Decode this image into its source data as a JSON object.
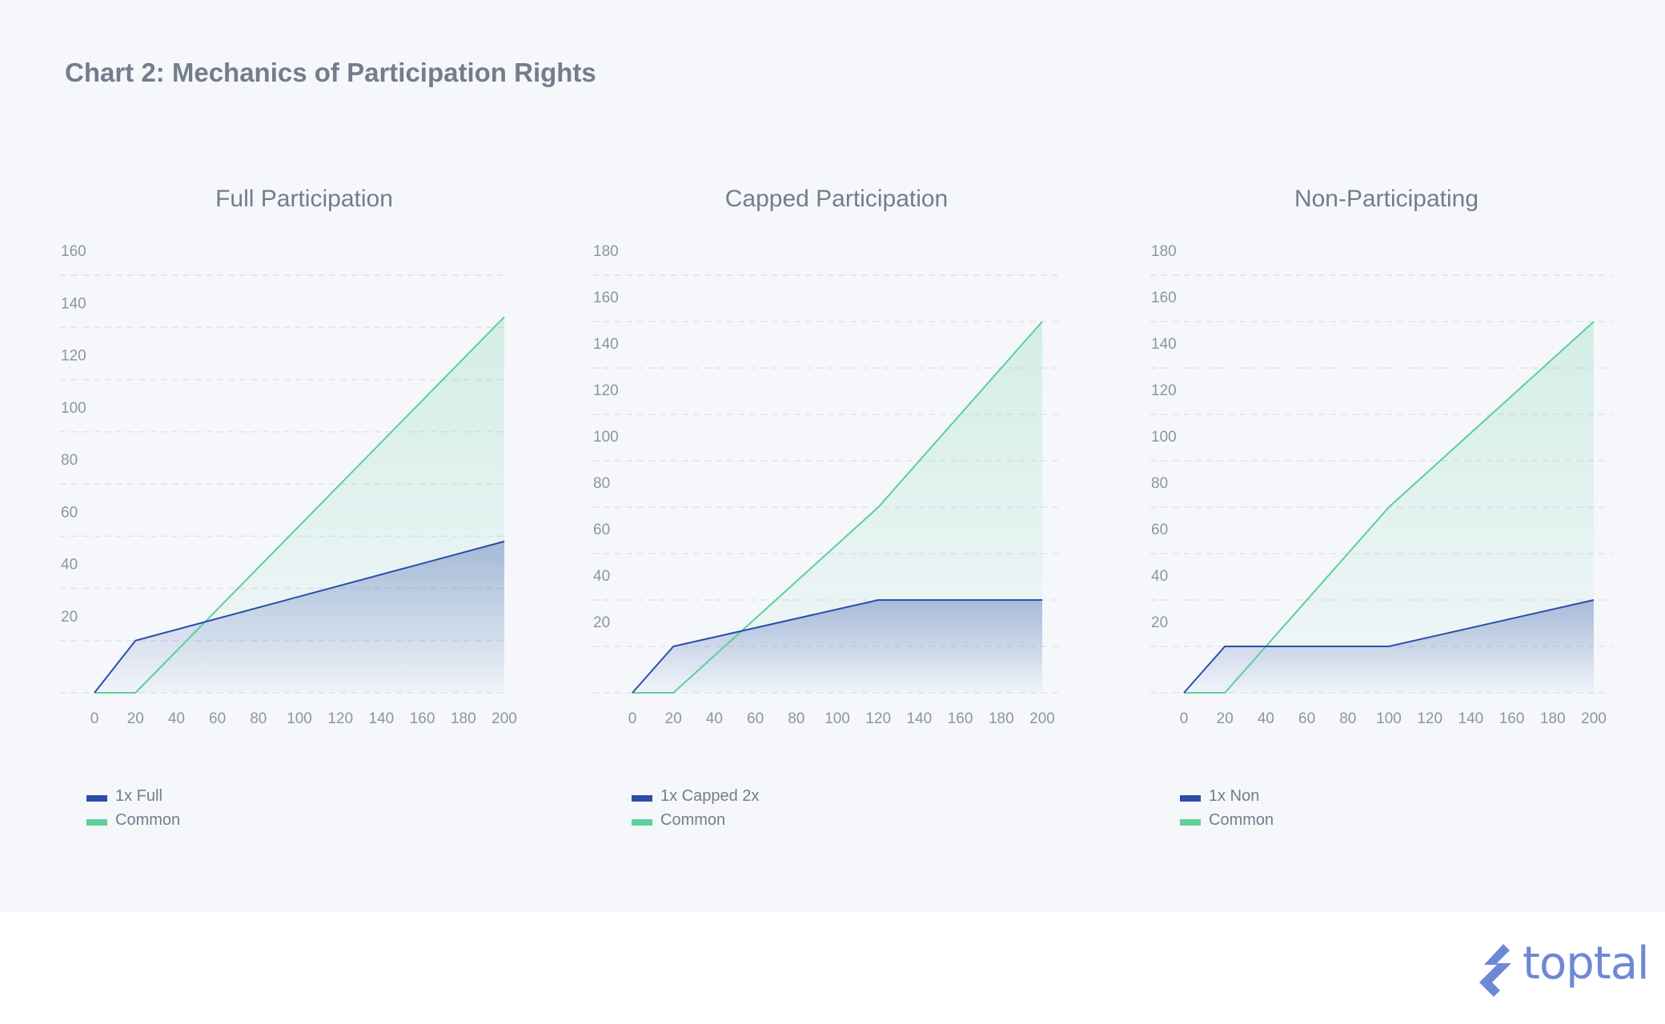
{
  "title": "Chart 2: Mechanics of Participation Rights",
  "brand": {
    "name": "toptal",
    "color": "#6d88d6"
  },
  "colors": {
    "preferred": "#2c4ea8",
    "common": "#5ccf9b"
  },
  "chart_data": [
    {
      "type": "area",
      "title": "Full Participation",
      "x_ticks": [
        "0",
        "20",
        "40",
        "60",
        "80",
        "100",
        "120",
        "140",
        "160",
        "180",
        "200"
      ],
      "y_ticks": [
        "20",
        "40",
        "60",
        "80",
        "100",
        "120",
        "140",
        "160"
      ],
      "xlim": [
        0,
        200
      ],
      "ylim": [
        0,
        160
      ],
      "grid": true,
      "legend": "bottom-left",
      "series": [
        {
          "name": "1x Full",
          "color": "#2c4ea8",
          "x": [
            0,
            20,
            200
          ],
          "y": [
            0,
            20,
            58
          ]
        },
        {
          "name": "Common",
          "color": "#5ccf9b",
          "x": [
            0,
            20,
            200
          ],
          "y": [
            0,
            0,
            144
          ]
        }
      ]
    },
    {
      "type": "area",
      "title": "Capped Participation",
      "x_ticks": [
        "0",
        "20",
        "40",
        "60",
        "80",
        "100",
        "120",
        "140",
        "160",
        "180",
        "200"
      ],
      "y_ticks": [
        "20",
        "40",
        "60",
        "80",
        "100",
        "120",
        "140",
        "160",
        "180"
      ],
      "xlim": [
        0,
        200
      ],
      "ylim": [
        0,
        180
      ],
      "grid": true,
      "legend": "bottom-left",
      "series": [
        {
          "name": "1x Capped 2x",
          "color": "#2c4ea8",
          "x": [
            0,
            20,
            120,
            200
          ],
          "y": [
            0,
            20,
            40,
            40
          ]
        },
        {
          "name": "Common",
          "color": "#5ccf9b",
          "x": [
            0,
            20,
            120,
            200
          ],
          "y": [
            0,
            0,
            80,
            160
          ]
        }
      ]
    },
    {
      "type": "area",
      "title": "Non-Participating",
      "x_ticks": [
        "0",
        "20",
        "40",
        "60",
        "80",
        "100",
        "120",
        "140",
        "160",
        "180",
        "200"
      ],
      "y_ticks": [
        "20",
        "40",
        "60",
        "80",
        "100",
        "120",
        "140",
        "160",
        "180"
      ],
      "xlim": [
        0,
        200
      ],
      "ylim": [
        0,
        180
      ],
      "grid": true,
      "legend": "bottom-left",
      "series": [
        {
          "name": "1x Non",
          "color": "#2c4ea8",
          "x": [
            0,
            20,
            100,
            200
          ],
          "y": [
            0,
            20,
            20,
            40
          ]
        },
        {
          "name": "Common",
          "color": "#5ccf9b",
          "x": [
            0,
            20,
            100,
            200
          ],
          "y": [
            0,
            0,
            80,
            160
          ]
        }
      ]
    }
  ]
}
